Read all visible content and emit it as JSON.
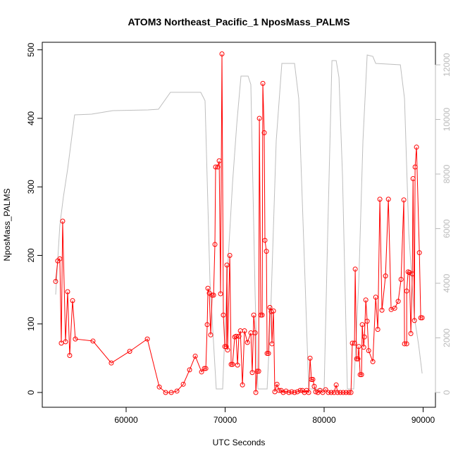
{
  "chart_data": {
    "type": "line",
    "title": "ATOM3 Northeast_Pacific_1 NposMass_PALMS",
    "x_label": "UTC Seconds",
    "y_label": "NposMass_PALMS",
    "xlim": [
      51530,
      91245
    ],
    "ylim": [
      -21.6,
      511
    ],
    "y2lim": [
      -542,
      12826
    ],
    "xticks": [
      60000,
      70000,
      80000,
      90000
    ],
    "yticks": [
      0,
      100,
      200,
      300,
      400,
      500
    ],
    "y2ticks": [
      0,
      2000,
      4000,
      6000,
      8000,
      10000,
      12000
    ],
    "series": [
      {
        "color": "#bebebe",
        "axis": "y2",
        "markers": false,
        "x": [
          52880,
          53300,
          53660,
          54090,
          54800,
          56510,
          58650,
          62200,
          63270,
          64480,
          67540,
          67830,
          67970,
          68470,
          69100,
          69750,
          70180,
          70750,
          71180,
          71600,
          72320,
          72600,
          73030,
          73310,
          74240,
          74590,
          75160,
          75730,
          77010,
          77440,
          78080,
          78440,
          80000,
          80360,
          80790,
          81220,
          81500,
          81860,
          82350,
          82990,
          83500,
          83920,
          84350,
          84920,
          85210,
          87700,
          88120,
          88550,
          89120,
          89550,
          89900
        ],
        "values": [
          3587,
          6116,
          7148,
          8181,
          10168,
          10194,
          10323,
          10348,
          10374,
          10994,
          10994,
          10787,
          10684,
          4052,
          129,
          129,
          4052,
          7665,
          9858,
          11587,
          11587,
          11277,
          3535,
          129,
          129,
          2761,
          9213,
          12052,
          12052,
          10761,
          4052,
          129,
          129,
          5858,
          12155,
          12155,
          11535,
          7923,
          129,
          129,
          4052,
          9213,
          12361,
          12310,
          12052,
          12000,
          10761,
          5858,
          2761,
          1729,
          697
        ]
      },
      {
        "color": "#ff0000",
        "markers": true,
        "x": [
          52880,
          53090,
          53300,
          53450,
          53590,
          53880,
          54090,
          54300,
          54590,
          54870,
          56650,
          58500,
          60360,
          62140,
          63350,
          63990,
          64560,
          65130,
          65770,
          66410,
          66980,
          67620,
          67900,
          68050,
          68190,
          68260,
          68400,
          68540,
          68690,
          68830,
          68970,
          69040,
          69260,
          69400,
          69540,
          69680,
          69820,
          69970,
          70110,
          70180,
          70250,
          70470,
          70610,
          70750,
          70970,
          71110,
          71250,
          71390,
          71540,
          71750,
          71960,
          72250,
          72600,
          72740,
          72890,
          73030,
          73100,
          73240,
          73390,
          73460,
          73600,
          73740,
          73810,
          73950,
          74020,
          74170,
          74240,
          74380,
          74520,
          74660,
          74730,
          74880,
          75020,
          75240,
          75450,
          75660,
          75870,
          76150,
          76440,
          76720,
          77010,
          77300,
          77580,
          77800,
          78010,
          78220,
          78440,
          78580,
          78720,
          78860,
          79000,
          79150,
          79370,
          79580,
          79860,
          80150,
          80430,
          80720,
          81000,
          81220,
          81360,
          81640,
          81930,
          82210,
          82500,
          82710,
          82850,
          83070,
          83140,
          83280,
          83420,
          83500,
          83640,
          83780,
          83850,
          84000,
          84070,
          84210,
          84350,
          84500,
          84920,
          85210,
          85420,
          85630,
          85840,
          86200,
          86490,
          86770,
          87130,
          87480,
          87770,
          88050,
          88120,
          88340,
          88340,
          88480,
          88620,
          88760,
          88910,
          88980,
          89120,
          89190,
          89330,
          89620,
          89760,
          89900
        ],
        "values": [
          162,
          192,
          195,
          72,
          250,
          74,
          147,
          54,
          134,
          78,
          75,
          43,
          60,
          78,
          8,
          0,
          0,
          2,
          12,
          33,
          53,
          30,
          35,
          35,
          99,
          152,
          145,
          84,
          142,
          142,
          216,
          329,
          329,
          338,
          144,
          494,
          113,
          67,
          67,
          186,
          62,
          200,
          41,
          41,
          81,
          82,
          40,
          82,
          90,
          11,
          90,
          73,
          87,
          29,
          113,
          87,
          0,
          31,
          31,
          400,
          113,
          113,
          451,
          379,
          222,
          206,
          57,
          57,
          124,
          118,
          71,
          119,
          1,
          12,
          3,
          3,
          0,
          2,
          0,
          1,
          0,
          1,
          3,
          3,
          0,
          3,
          0,
          50,
          19,
          19,
          9,
          1,
          0,
          3,
          0,
          4,
          0,
          0,
          0,
          11,
          0,
          0,
          0,
          0,
          0,
          0,
          72,
          72,
          180,
          49,
          49,
          67,
          26,
          26,
          99,
          66,
          81,
          135,
          104,
          61,
          45,
          139,
          92,
          282,
          120,
          170,
          282,
          121,
          123,
          133,
          165,
          281,
          71,
          71,
          148,
          176,
          175,
          86,
          173,
          312,
          105,
          329,
          358,
          204,
          109,
          109
        ]
      }
    ]
  }
}
